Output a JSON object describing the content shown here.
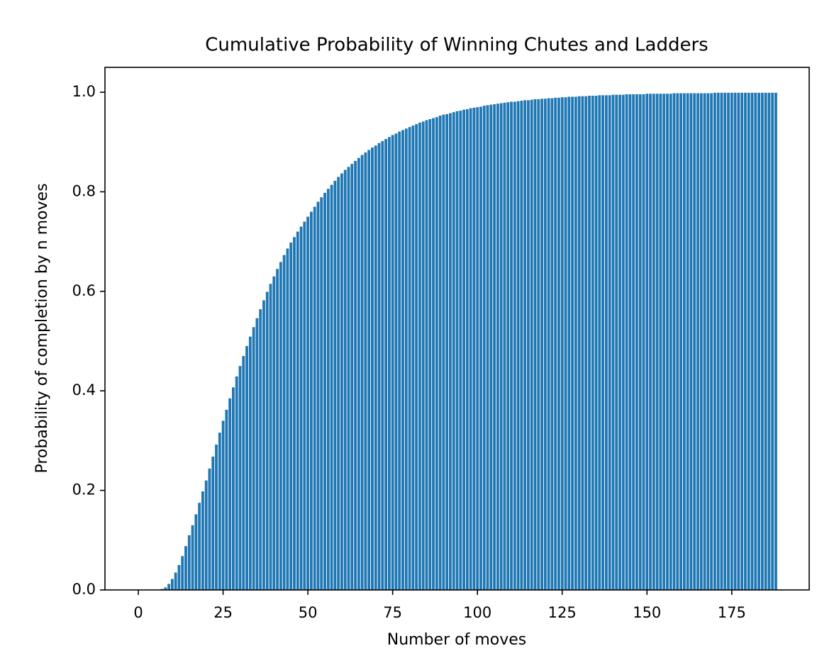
{
  "chart_data": {
    "type": "bar",
    "title": "Cumulative Probability of Winning Chutes and Ladders",
    "xlabel": "Number of moves",
    "ylabel": "Probability of completion by n moves",
    "color": "#1f77b4",
    "bar_width": 0.8,
    "x": [
      0,
      1,
      2,
      3,
      4,
      5,
      6,
      7,
      8,
      9,
      10,
      11,
      12,
      13,
      14,
      15,
      16,
      17,
      18,
      19,
      20,
      21,
      22,
      23,
      24,
      25,
      26,
      27,
      28,
      29,
      30,
      31,
      32,
      33,
      34,
      35,
      36,
      37,
      38,
      39,
      40,
      41,
      42,
      43,
      44,
      45,
      46,
      47,
      48,
      49,
      50,
      51,
      52,
      53,
      54,
      55,
      56,
      57,
      58,
      59,
      60,
      61,
      62,
      63,
      64,
      65,
      66,
      67,
      68,
      69,
      70,
      71,
      72,
      73,
      74,
      75,
      76,
      77,
      78,
      79,
      80,
      81,
      82,
      83,
      84,
      85,
      86,
      87,
      88,
      89,
      90,
      91,
      92,
      93,
      94,
      95,
      96,
      97,
      98,
      99,
      100,
      101,
      102,
      103,
      104,
      105,
      106,
      107,
      108,
      109,
      110,
      111,
      112,
      113,
      114,
      115,
      116,
      117,
      118,
      119,
      120,
      121,
      122,
      123,
      124,
      125,
      126,
      127,
      128,
      129,
      130,
      131,
      132,
      133,
      134,
      135,
      136,
      137,
      138,
      139,
      140,
      141,
      142,
      143,
      144,
      145,
      146,
      147,
      148,
      149,
      150,
      151,
      152,
      153,
      154,
      155,
      156,
      157,
      158,
      159,
      160,
      161,
      162,
      163,
      164,
      165,
      166,
      167,
      168,
      169,
      170,
      171,
      172,
      173,
      174,
      175,
      176,
      177,
      178,
      179,
      180,
      181,
      182,
      183,
      184,
      185,
      186,
      187,
      188
    ],
    "values": [
      0,
      0,
      0,
      0,
      0,
      0,
      0,
      0.002,
      0.005,
      0.012,
      0.022,
      0.035,
      0.05,
      0.068,
      0.088,
      0.11,
      0.13,
      0.152,
      0.175,
      0.198,
      0.22,
      0.244,
      0.268,
      0.292,
      0.316,
      0.34,
      0.362,
      0.385,
      0.407,
      0.429,
      0.45,
      0.47,
      0.49,
      0.509,
      0.528,
      0.546,
      0.564,
      0.582,
      0.599,
      0.615,
      0.63,
      0.645,
      0.659,
      0.673,
      0.686,
      0.698,
      0.709,
      0.72,
      0.73,
      0.74,
      0.75,
      0.76,
      0.77,
      0.78,
      0.789,
      0.798,
      0.806,
      0.814,
      0.822,
      0.83,
      0.837,
      0.844,
      0.85,
      0.856,
      0.862,
      0.868,
      0.874,
      0.879,
      0.884,
      0.889,
      0.893,
      0.898,
      0.902,
      0.906,
      0.91,
      0.914,
      0.917,
      0.921,
      0.924,
      0.927,
      0.93,
      0.933,
      0.936,
      0.939,
      0.941,
      0.944,
      0.946,
      0.948,
      0.95,
      0.953,
      0.955,
      0.956,
      0.958,
      0.96,
      0.962,
      0.963,
      0.965,
      0.966,
      0.968,
      0.969,
      0.97,
      0.971,
      0.973,
      0.974,
      0.975,
      0.976,
      0.977,
      0.978,
      0.979,
      0.98,
      0.981,
      0.981,
      0.982,
      0.983,
      0.984,
      0.984,
      0.985,
      0.986,
      0.986,
      0.987,
      0.987,
      0.988,
      0.988,
      0.989,
      0.989,
      0.99,
      0.99,
      0.991,
      0.991,
      0.991,
      0.992,
      0.992,
      0.992,
      0.993,
      0.993,
      0.993,
      0.994,
      0.994,
      0.994,
      0.994,
      0.995,
      0.995,
      0.995,
      0.995,
      0.996,
      0.996,
      0.996,
      0.996,
      0.996,
      0.996,
      0.997,
      0.997,
      0.997,
      0.997,
      0.997,
      0.997,
      0.997,
      0.997,
      0.998,
      0.998,
      0.998,
      0.998,
      0.998,
      0.998,
      0.998,
      0.998,
      0.998,
      0.998,
      0.998,
      0.998,
      0.999,
      0.999,
      0.999,
      0.999,
      0.999,
      0.999,
      0.999,
      0.999,
      0.999,
      0.999,
      0.999,
      0.999,
      0.999,
      0.999,
      0.999,
      0.999,
      0.999,
      0.999,
      0.999
    ],
    "xlim": [
      -9.84,
      197.84
    ],
    "xticks": [
      0,
      25,
      50,
      75,
      100,
      125,
      150,
      175
    ],
    "ylim": [
      0,
      1.05
    ],
    "yticks": [
      {
        "value": 0,
        "label": "0.0"
      },
      0.2,
      0.4,
      0.6,
      0.8,
      {
        "value": 1,
        "label": "1.0"
      }
    ]
  }
}
